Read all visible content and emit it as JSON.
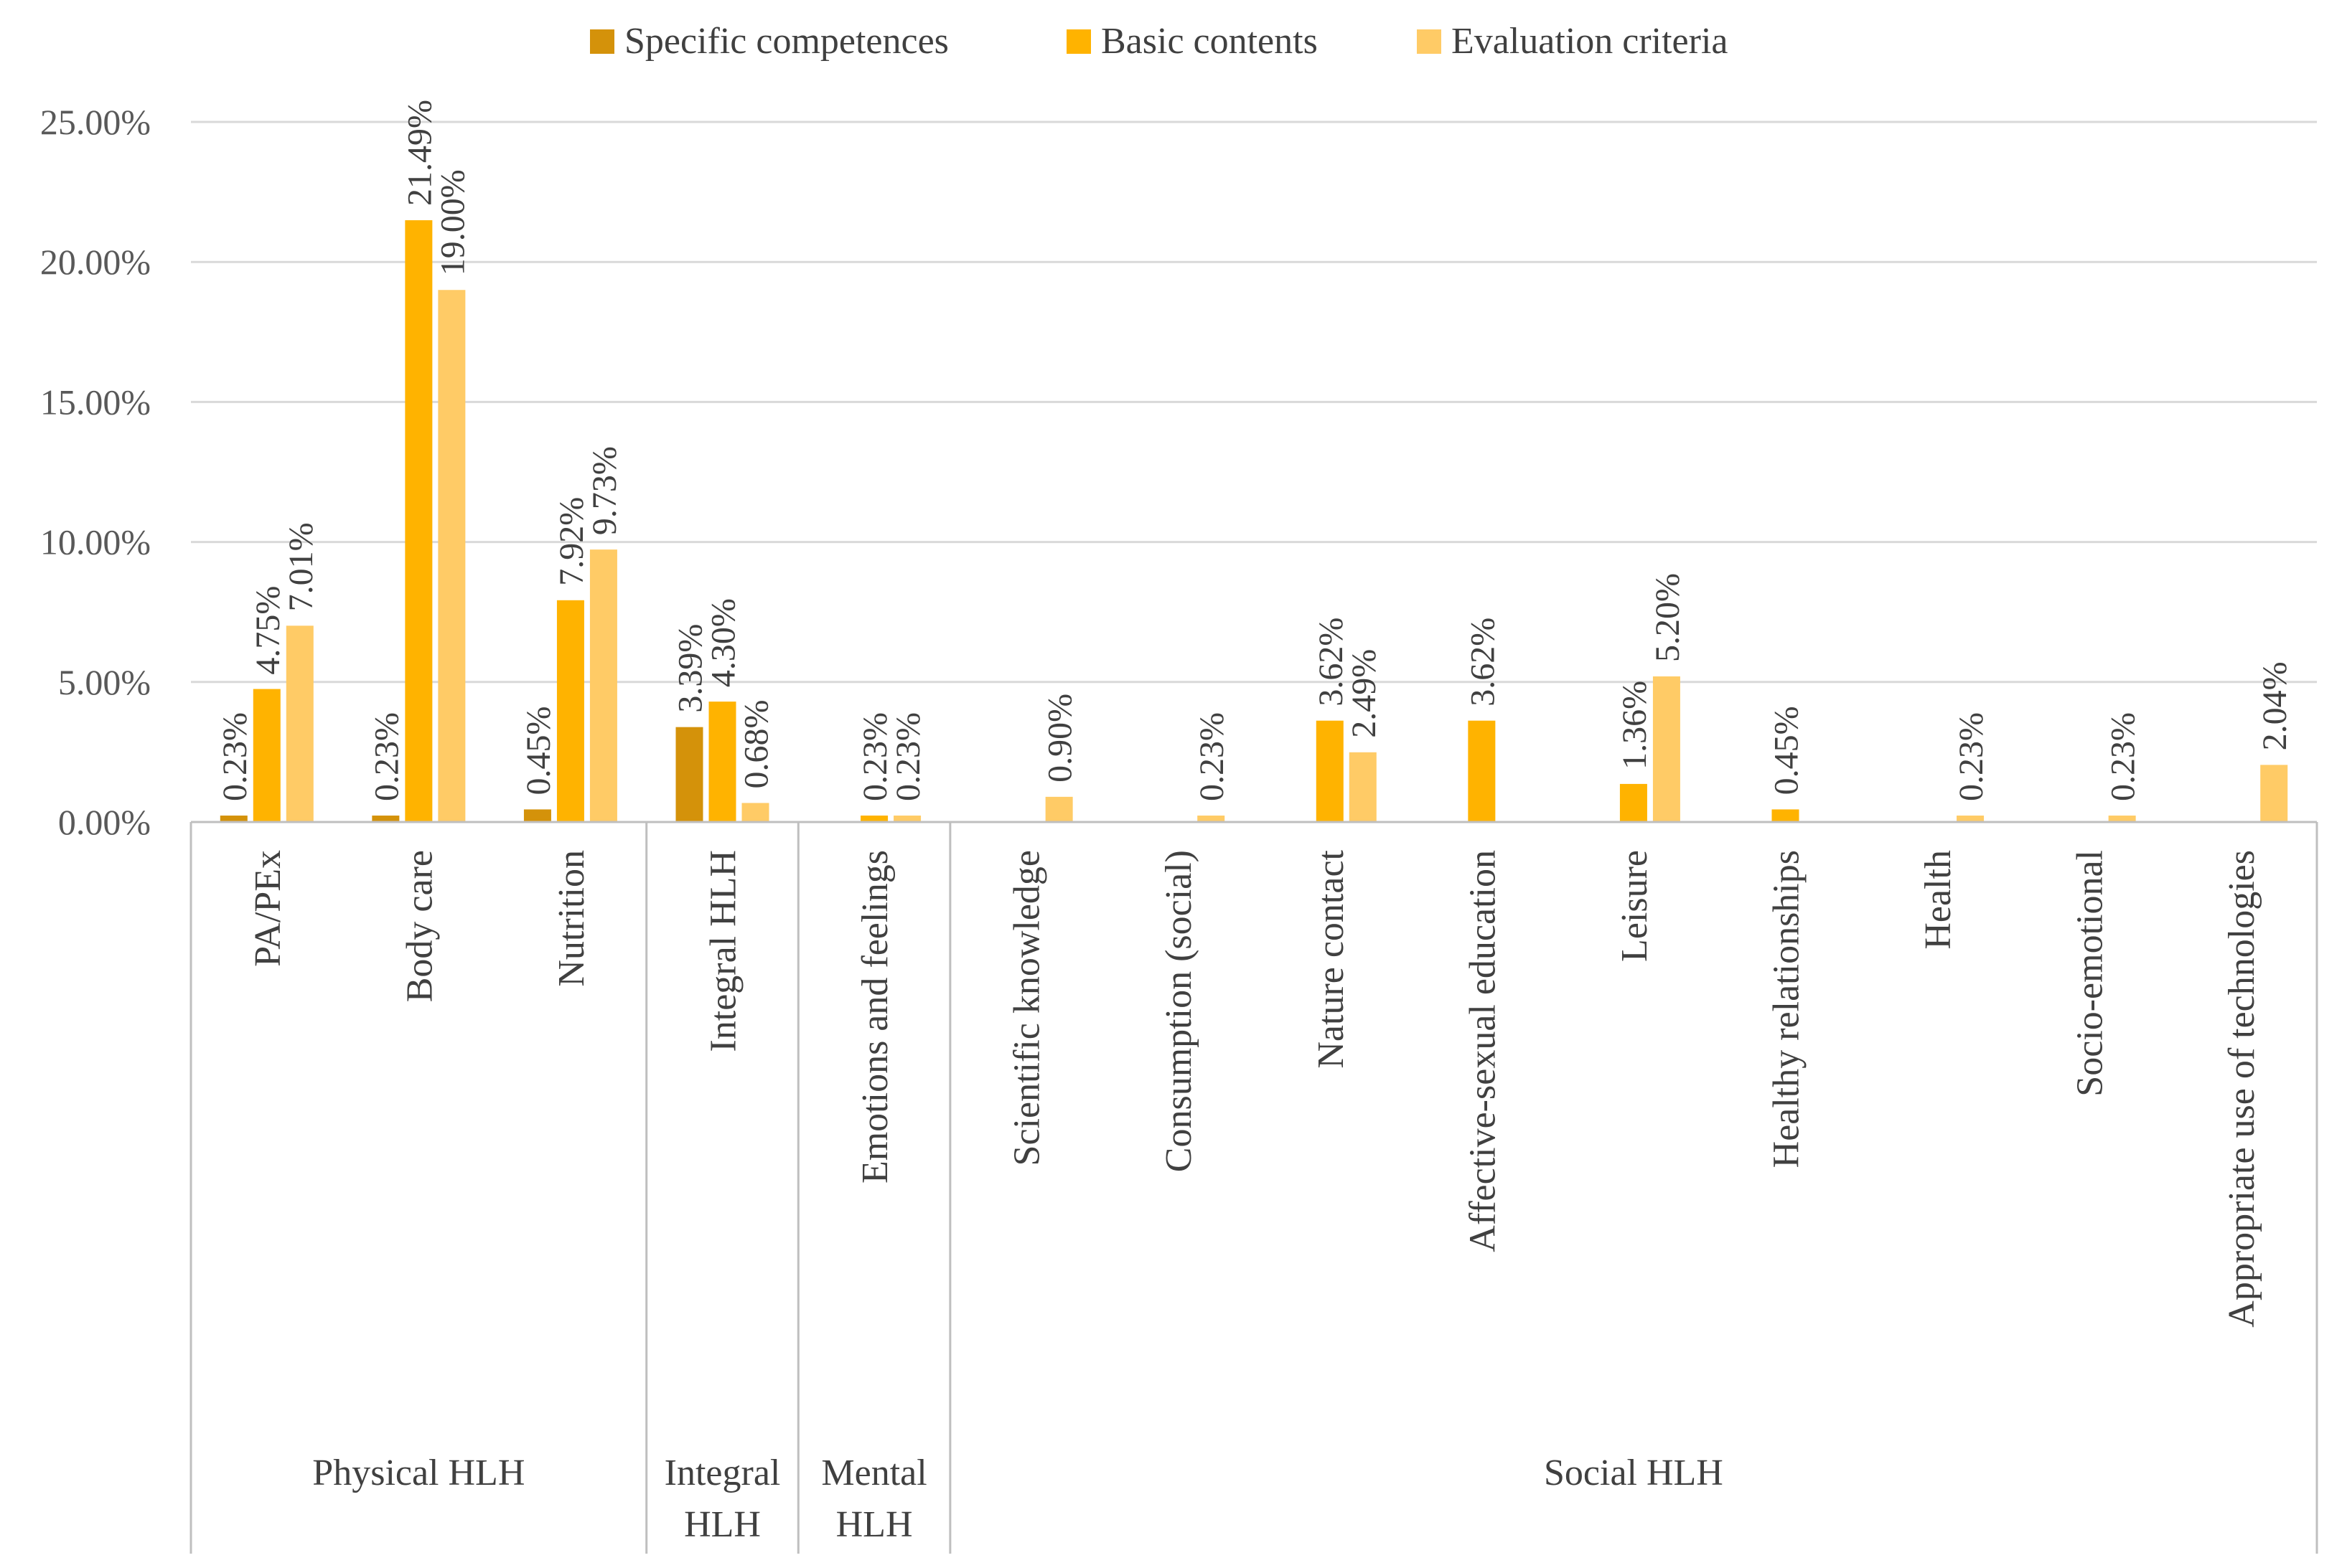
{
  "chart_data": {
    "type": "bar",
    "title": "",
    "xlabel": "",
    "ylabel": "",
    "ylim": [
      0,
      25
    ],
    "yticks": [
      "0.00%",
      "5.00%",
      "10.00%",
      "15.00%",
      "20.00%",
      "25.00%"
    ],
    "grid": true,
    "legend_position": "top-center",
    "categories": [
      "PA/PEx",
      "Body care",
      "Nutrition",
      "Integral HLH",
      "Emotions and feelings",
      "Scientific knowledge",
      "Consumption (social)",
      "Nature contact",
      "Affective-sexual education",
      "Leisure",
      "Healthy relationships",
      "Health",
      "Socio-emotional",
      "Appropriate use of technologies"
    ],
    "groups": [
      {
        "label": [
          "Physical HLH"
        ],
        "start": 0,
        "end": 2
      },
      {
        "label": [
          "Integral",
          "HLH"
        ],
        "start": 3,
        "end": 3
      },
      {
        "label": [
          "Mental",
          "HLH"
        ],
        "start": 4,
        "end": 4
      },
      {
        "label": [
          "Social HLH"
        ],
        "start": 5,
        "end": 13
      }
    ],
    "series": [
      {
        "name": "Specific competences",
        "color": "#D4920A",
        "values": [
          0.23,
          0.23,
          0.45,
          3.39,
          null,
          null,
          null,
          null,
          null,
          null,
          null,
          null,
          null,
          null
        ],
        "labels": [
          "0.23%",
          "0.23%",
          "0.45%",
          "3.39%",
          null,
          null,
          null,
          null,
          null,
          null,
          null,
          null,
          null,
          null
        ]
      },
      {
        "name": "Basic contents",
        "color": "#FFB300",
        "values": [
          4.75,
          21.49,
          7.92,
          4.3,
          0.23,
          null,
          null,
          3.62,
          3.62,
          1.36,
          0.45,
          null,
          null,
          null
        ],
        "labels": [
          "4.75%",
          "21.49%",
          "7.92%",
          "4.30%",
          "0.23%",
          null,
          null,
          "3.62%",
          "3.62%",
          "1.36%",
          "0.45%",
          null,
          null,
          null
        ]
      },
      {
        "name": "Evaluation criteria",
        "color": "#FFCB66",
        "values": [
          7.01,
          19.0,
          9.73,
          0.68,
          0.23,
          0.9,
          0.23,
          2.49,
          null,
          5.2,
          null,
          0.23,
          0.23,
          2.04
        ],
        "labels": [
          "7.01%",
          "19.00%",
          "9.73%",
          "0.68%",
          "0.23%",
          "0.90%",
          "0.23%",
          "2.49%",
          null,
          "5.20%",
          null,
          "0.23%",
          "0.23%",
          "2.04%"
        ]
      }
    ]
  }
}
